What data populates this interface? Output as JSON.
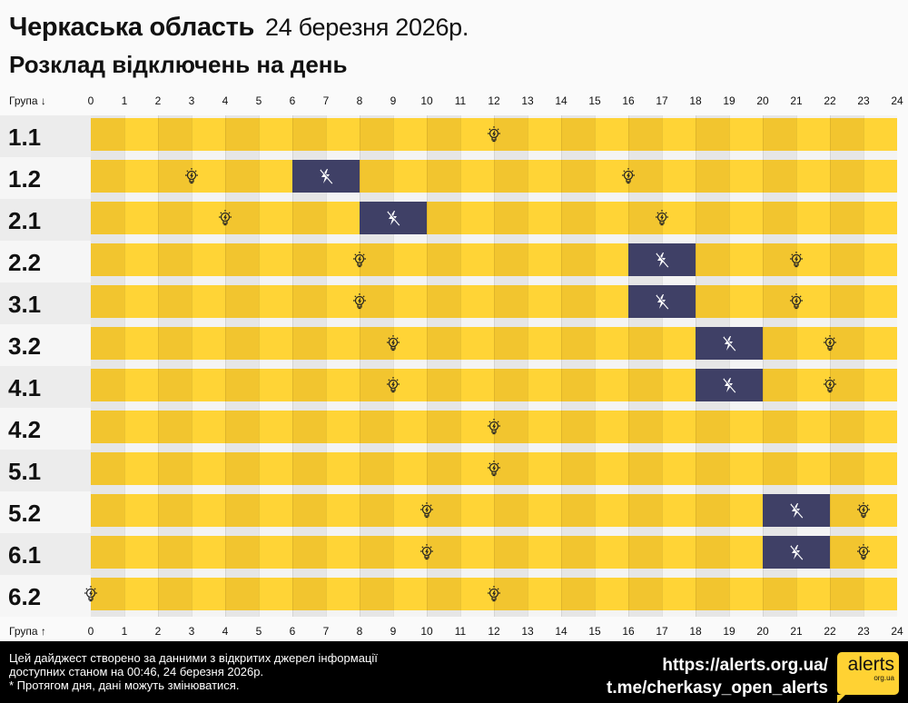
{
  "header": {
    "region": "Черкаська область",
    "date": "24 березня 2026р.",
    "subtitle": "Розклад відключень на день"
  },
  "axis": {
    "top_label": "Група ↓",
    "bottom_label": "Група ↑",
    "hours": [
      "0",
      "1",
      "2",
      "3",
      "4",
      "5",
      "6",
      "7",
      "8",
      "9",
      "10",
      "11",
      "12",
      "13",
      "14",
      "15",
      "16",
      "17",
      "18",
      "19",
      "20",
      "21",
      "22",
      "23",
      "24"
    ]
  },
  "colors": {
    "on_dark": "#f2c52f",
    "on_light": "#ffd436",
    "off": "#3f4066",
    "label_a": "#ececec",
    "label_b": "#f6f6f6"
  },
  "icons": {
    "on": "lightbulb-icon",
    "off": "power-off-icon"
  },
  "groups": [
    {
      "name": "1.1",
      "off": [],
      "on": [
        [
          0,
          24
        ]
      ]
    },
    {
      "name": "1.2",
      "off": [
        [
          6,
          8
        ]
      ],
      "on": [
        [
          0,
          6
        ],
        [
          8,
          24
        ]
      ]
    },
    {
      "name": "2.1",
      "off": [
        [
          8,
          10
        ]
      ],
      "on": [
        [
          0,
          8
        ],
        [
          10,
          24
        ]
      ]
    },
    {
      "name": "2.2",
      "off": [
        [
          16,
          18
        ]
      ],
      "on": [
        [
          0,
          16
        ],
        [
          18,
          24
        ]
      ]
    },
    {
      "name": "3.1",
      "off": [
        [
          16,
          18
        ]
      ],
      "on": [
        [
          0,
          16
        ],
        [
          18,
          24
        ]
      ]
    },
    {
      "name": "3.2",
      "off": [
        [
          18,
          20
        ]
      ],
      "on": [
        [
          0,
          18
        ],
        [
          20,
          24
        ]
      ]
    },
    {
      "name": "4.1",
      "off": [
        [
          18,
          20
        ]
      ],
      "on": [
        [
          0,
          18
        ],
        [
          20,
          24
        ]
      ]
    },
    {
      "name": "4.2",
      "off": [],
      "on": [
        [
          0,
          24
        ]
      ]
    },
    {
      "name": "5.1",
      "off": [],
      "on": [
        [
          0,
          24
        ]
      ]
    },
    {
      "name": "5.2",
      "off": [
        [
          20,
          22
        ]
      ],
      "on": [
        [
          0,
          20
        ],
        [
          22,
          24
        ]
      ]
    },
    {
      "name": "6.1",
      "off": [
        [
          20,
          22
        ]
      ],
      "on": [
        [
          0,
          20
        ],
        [
          22,
          24
        ]
      ]
    },
    {
      "name": "6.2",
      "off": [],
      "on": [
        [
          0,
          0
        ],
        [
          0,
          24
        ]
      ]
    }
  ],
  "footer": {
    "line1": "Цей дайджест створено за данними з відкритих джерел інформації",
    "line2": "доступних станом на 00:46, 24 березня 2026р.",
    "line3": "* Протягом дня, дані можуть змінюватися.",
    "link1": "https://alerts.org.ua/",
    "link2": "t.me/cherkasy_open_alerts",
    "logo_main": "alerts",
    "logo_sub": "org.ua"
  }
}
